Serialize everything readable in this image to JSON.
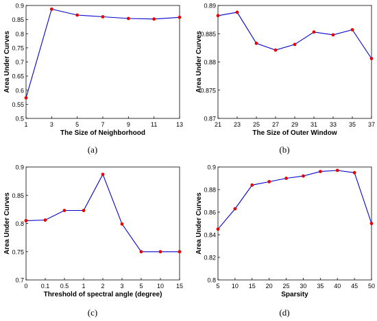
{
  "chart_data": [
    {
      "type": "line",
      "panel_label": "(a)",
      "x": [
        "1",
        "3",
        "5",
        "7",
        "9",
        "11",
        "13"
      ],
      "values": [
        0.573,
        0.887,
        0.866,
        0.86,
        0.854,
        0.852,
        0.858
      ],
      "ylim": [
        0.5,
        0.9
      ],
      "yticks": [
        "0.5",
        "0.55",
        "0.6",
        "0.65",
        "0.7",
        "0.75",
        "0.8",
        "0.85",
        "0.9"
      ],
      "xlabel": "The Size of Neighborhood",
      "ylabel": "Area Under Curves",
      "line_color": "#0000cc",
      "marker_color": "#e60000",
      "grid": false
    },
    {
      "type": "line",
      "panel_label": "(b)",
      "x": [
        "21",
        "23",
        "25",
        "27",
        "29",
        "31",
        "33",
        "35",
        "37"
      ],
      "values": [
        0.8882,
        0.8888,
        0.8833,
        0.8821,
        0.8831,
        0.8853,
        0.8848,
        0.8857,
        0.8806
      ],
      "ylim": [
        0.87,
        0.89
      ],
      "yticks": [
        "0.87",
        "0.875",
        "0.88",
        "0.885",
        "0.89"
      ],
      "xlabel": "The Size of Outer Window",
      "ylabel": "Area Under Curves",
      "line_color": "#0000cc",
      "marker_color": "#e60000",
      "grid": false
    },
    {
      "type": "line",
      "panel_label": "(c)",
      "x": [
        "0",
        "0.1",
        "0.5",
        "1",
        "2",
        "3",
        "5",
        "10",
        "15"
      ],
      "values": [
        0.805,
        0.806,
        0.823,
        0.823,
        0.887,
        0.799,
        0.75,
        0.75,
        0.75
      ],
      "ylim": [
        0.7,
        0.9
      ],
      "yticks": [
        "0.7",
        "0.75",
        "0.8",
        "0.85",
        "0.9"
      ],
      "xlabel": "Threshold of spectral angle (degree)",
      "ylabel": "Area Under Curves",
      "line_color": "#0000cc",
      "marker_color": "#e60000",
      "grid": false
    },
    {
      "type": "line",
      "panel_label": "(d)",
      "x": [
        "5",
        "10",
        "15",
        "20",
        "25",
        "30",
        "35",
        "40",
        "45",
        "50"
      ],
      "values": [
        0.845,
        0.863,
        0.884,
        0.887,
        0.89,
        0.892,
        0.896,
        0.897,
        0.895,
        0.85
      ],
      "ylim": [
        0.8,
        0.9
      ],
      "yticks": [
        "0.8",
        "0.82",
        "0.84",
        "0.86",
        "0.88",
        "0.9"
      ],
      "xlabel": "Sparsity",
      "ylabel": "Area Under Curves",
      "line_color": "#0000cc",
      "marker_color": "#e60000",
      "grid": false
    }
  ]
}
